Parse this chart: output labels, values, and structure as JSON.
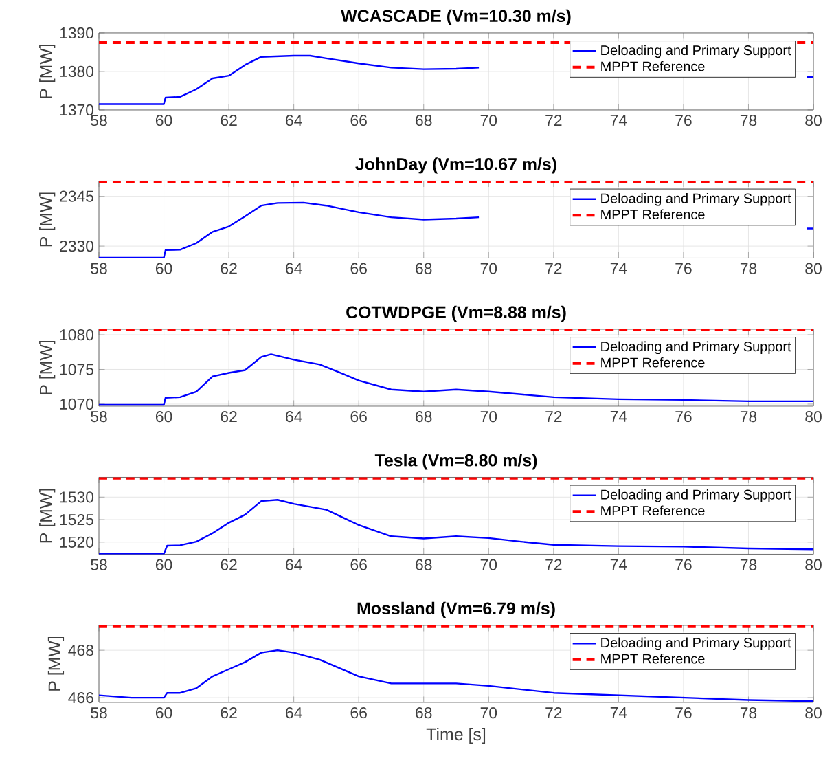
{
  "chart_data": [
    {
      "type": "line",
      "title": "WCASCADE (Vm=10.30 m/s)",
      "ylabel": "P [MW]",
      "xlim": [
        58,
        80
      ],
      "ylim": [
        1370,
        1390
      ],
      "xticks": [
        58,
        60,
        62,
        64,
        66,
        68,
        70,
        72,
        74,
        76,
        78,
        80
      ],
      "yticks": [
        1370,
        1380,
        1390
      ],
      "grid": true,
      "legend": "top right",
      "series": [
        {
          "name": "Deloading and Primary Support",
          "color": "#0000ff",
          "line_style": "solid",
          "x": [
            58,
            60,
            60.05,
            60.5,
            61,
            61.5,
            62,
            62.5,
            63,
            64,
            64.5,
            65,
            66,
            67,
            68,
            69,
            69.7,
            70,
            79.7,
            79.8,
            80
          ],
          "values": [
            1371.5,
            1371.5,
            1373.2,
            1373.4,
            1375.4,
            1378.2,
            1378.9,
            1381.7,
            1383.8,
            1384.1,
            1384.1,
            1383.4,
            1382.1,
            1381,
            1380.6,
            1380.7,
            1381,
            null,
            null,
            1378.6,
            1378.6
          ]
        },
        {
          "name": "MPPT Reference",
          "color": "#ff0000",
          "line_style": "dashed",
          "x": [
            58,
            80
          ],
          "values": [
            1387.5,
            1387.5
          ]
        }
      ]
    },
    {
      "type": "line",
      "title": "JohnDay (Vm=10.67 m/s)",
      "ylabel": "P [MW]",
      "xlim": [
        58,
        80
      ],
      "ylim": [
        2326.4,
        2349.6
      ],
      "xticks": [
        58,
        60,
        62,
        64,
        66,
        68,
        70,
        72,
        74,
        76,
        78,
        80
      ],
      "yticks": [
        2330,
        2345
      ],
      "grid": true,
      "legend": "top right",
      "series": [
        {
          "name": "Deloading and Primary Support",
          "color": "#0000ff",
          "line_style": "solid",
          "x": [
            58,
            60,
            60.05,
            60.5,
            61,
            61.5,
            62,
            62.5,
            63,
            63.5,
            64.3,
            65,
            66,
            67,
            68,
            69,
            69.7,
            70,
            79.7,
            79.8,
            80
          ],
          "values": [
            2326.5,
            2326.5,
            2328.8,
            2328.9,
            2330.9,
            2334.3,
            2335.9,
            2339,
            2342.2,
            2343,
            2343.1,
            2342.2,
            2340.2,
            2338.7,
            2338,
            2338.3,
            2338.7,
            null,
            null,
            2335.3,
            2335.3
          ]
        },
        {
          "name": "MPPT Reference",
          "color": "#ff0000",
          "line_style": "dashed",
          "x": [
            58,
            80
          ],
          "values": [
            2349.5,
            2349.5
          ]
        }
      ]
    },
    {
      "type": "line",
      "title": "COTWDPGE (Vm=8.88 m/s)",
      "ylabel": "P [MW]",
      "xlim": [
        58,
        80
      ],
      "ylim": [
        1069.7,
        1080.8
      ],
      "xticks": [
        58,
        60,
        62,
        64,
        66,
        68,
        70,
        72,
        74,
        76,
        78,
        80
      ],
      "yticks": [
        1070,
        1075,
        1080
      ],
      "grid": true,
      "legend": "top right",
      "series": [
        {
          "name": "Deloading and Primary Support",
          "color": "#0000ff",
          "line_style": "solid",
          "x": [
            58,
            60,
            60.05,
            60.5,
            61,
            61.5,
            62,
            62.5,
            63,
            63.3,
            64,
            64.8,
            65.5,
            66,
            67,
            68,
            69,
            70,
            71,
            72,
            74,
            76,
            78,
            80
          ],
          "values": [
            1069.9,
            1069.9,
            1070.9,
            1071,
            1071.8,
            1074,
            1074.5,
            1074.9,
            1076.8,
            1077.2,
            1076.4,
            1075.7,
            1074.4,
            1073.4,
            1072.1,
            1071.8,
            1072.1,
            1071.8,
            1071.4,
            1071,
            1070.7,
            1070.6,
            1070.4,
            1070.4
          ]
        },
        {
          "name": "MPPT Reference",
          "color": "#ff0000",
          "line_style": "dashed",
          "x": [
            58,
            80
          ],
          "values": [
            1080.7,
            1080.7
          ]
        }
      ]
    },
    {
      "type": "line",
      "title": "Tesla (Vm=8.80 m/s)",
      "ylabel": "P [MW]",
      "xlim": [
        58,
        80
      ],
      "ylim": [
        1517.3,
        1534.4
      ],
      "xticks": [
        58,
        60,
        62,
        64,
        66,
        68,
        70,
        72,
        74,
        76,
        78,
        80
      ],
      "yticks": [
        1520,
        1525,
        1530
      ],
      "grid": true,
      "legend": "top right",
      "series": [
        {
          "name": "Deloading and Primary Support",
          "color": "#0000ff",
          "line_style": "solid",
          "x": [
            58,
            60,
            60.1,
            60.5,
            61,
            61.5,
            62,
            62.5,
            63,
            63.5,
            64,
            65,
            66,
            67,
            68,
            69,
            70,
            71,
            72,
            74,
            76,
            78,
            80
          ],
          "values": [
            1517.4,
            1517.4,
            1519.2,
            1519.3,
            1520.1,
            1522,
            1524.3,
            1526.1,
            1529.1,
            1529.4,
            1528.5,
            1527.2,
            1523.8,
            1521.3,
            1520.8,
            1521.3,
            1520.9,
            1520.1,
            1519.4,
            1519.1,
            1519,
            1518.6,
            1518.4
          ]
        },
        {
          "name": "MPPT Reference",
          "color": "#ff0000",
          "line_style": "dashed",
          "x": [
            58,
            80
          ],
          "values": [
            1534.2,
            1534.2
          ]
        }
      ]
    },
    {
      "type": "line",
      "title": "Mossland (Vm=6.79 m/s)",
      "xlabel": "Time [s]",
      "ylabel": "P [MW]",
      "xlim": [
        58,
        80
      ],
      "ylim": [
        465.8,
        469.05
      ],
      "xticks": [
        58,
        60,
        62,
        64,
        66,
        68,
        70,
        72,
        74,
        76,
        78,
        80
      ],
      "yticks": [
        466,
        468
      ],
      "grid": true,
      "legend": "top right",
      "series": [
        {
          "name": "Deloading and Primary Support",
          "color": "#0000ff",
          "line_style": "solid",
          "x": [
            58,
            59,
            60,
            60.1,
            60.5,
            61,
            61.5,
            62,
            62.5,
            63,
            63.5,
            64,
            64.8,
            66,
            67,
            68,
            69,
            70,
            72,
            74,
            76,
            78,
            80
          ],
          "values": [
            466.1,
            466,
            466,
            466.2,
            466.2,
            466.4,
            466.9,
            467.2,
            467.5,
            467.9,
            468,
            467.9,
            467.6,
            466.9,
            466.6,
            466.6,
            466.6,
            466.5,
            466.2,
            466.1,
            466,
            465.9,
            465.85
          ]
        },
        {
          "name": "MPPT Reference",
          "color": "#ff0000",
          "line_style": "dashed",
          "x": [
            58,
            80
          ],
          "values": [
            469,
            469
          ]
        }
      ]
    }
  ]
}
